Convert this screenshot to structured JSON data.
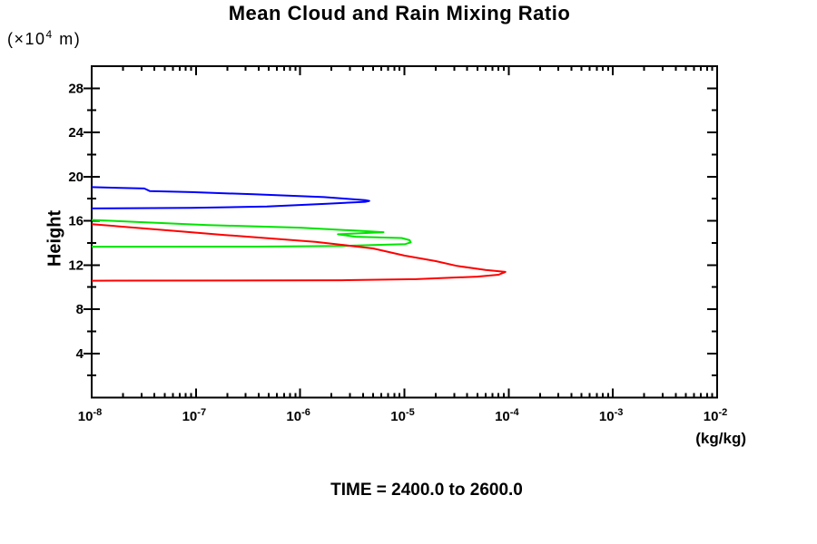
{
  "chart_data": {
    "type": "line",
    "title": "Mean Cloud and Rain Mixing Ratio",
    "ylabel": "Height",
    "y_unit": {
      "prefix": "(×10",
      "exponent": "4",
      "suffix": " m)"
    },
    "x_unit": "(kg/kg)",
    "caption": "TIME = 2400.0 to 2600.0",
    "x_scale": "log",
    "x_exponent_range": [
      -8,
      -2
    ],
    "x_tick_base": "10",
    "x_major_tick_exponents": [
      -8,
      -7,
      -6,
      -5,
      -4,
      -3,
      -2
    ],
    "x_minor_decades": [
      -8,
      -7,
      -6,
      -5,
      -4,
      -3
    ],
    "ylim": [
      0,
      30
    ],
    "y_major_ticks": [
      4,
      8,
      12,
      16,
      20,
      24,
      28
    ],
    "y_minor_ticks": [
      2,
      6,
      10,
      14,
      18,
      22,
      26
    ],
    "grid": false,
    "legend": "none",
    "axis_color": "#000000",
    "series": [
      {
        "name": "blue-profile",
        "color": "#0000ff",
        "points": [
          [
            1e-08,
            19.05
          ],
          [
            3.2e-08,
            18.93
          ],
          [
            3.6e-08,
            18.7
          ],
          [
            9e-08,
            18.6
          ],
          [
            3.6e-07,
            18.4
          ],
          [
            1.7e-06,
            18.15
          ],
          [
            2.8e-06,
            18.0
          ],
          [
            4.2e-06,
            17.88
          ],
          [
            4.6e-06,
            17.8
          ],
          [
            4.2e-06,
            17.72
          ],
          [
            1.8e-06,
            17.55
          ],
          [
            4.8e-07,
            17.3
          ],
          [
            9e-08,
            17.17
          ],
          [
            1e-08,
            17.12
          ]
        ]
      },
      {
        "name": "green-profile",
        "color": "#00e400",
        "points": [
          [
            1e-08,
            16.08
          ],
          [
            1.3e-07,
            15.62
          ],
          [
            1e-06,
            15.38
          ],
          [
            4e-06,
            15.08
          ],
          [
            6.3e-06,
            14.97
          ],
          [
            2.3e-06,
            14.78
          ],
          [
            3.4e-06,
            14.56
          ],
          [
            9.4e-06,
            14.45
          ],
          [
            1.12e-05,
            14.25
          ],
          [
            1.15e-05,
            14.05
          ],
          [
            1.02e-05,
            13.9
          ],
          [
            6.5e-06,
            13.84
          ],
          [
            2.5e-06,
            13.72
          ],
          [
            3.9e-07,
            13.67
          ],
          [
            1e-08,
            13.66
          ]
        ]
      },
      {
        "name": "red-profile",
        "color": "#ff0000",
        "points": [
          [
            1e-08,
            15.7
          ],
          [
            1.9e-07,
            14.72
          ],
          [
            1.4e-06,
            14.1
          ],
          [
            5e-06,
            13.5
          ],
          [
            1e-05,
            12.85
          ],
          [
            2e-05,
            12.35
          ],
          [
            3.2e-05,
            11.92
          ],
          [
            6e-05,
            11.55
          ],
          [
            9.3e-05,
            11.38
          ],
          [
            8e-05,
            11.12
          ],
          [
            5e-05,
            10.95
          ],
          [
            1.3e-05,
            10.72
          ],
          [
            2.5e-06,
            10.62
          ],
          [
            1e-08,
            10.58
          ]
        ]
      }
    ]
  }
}
